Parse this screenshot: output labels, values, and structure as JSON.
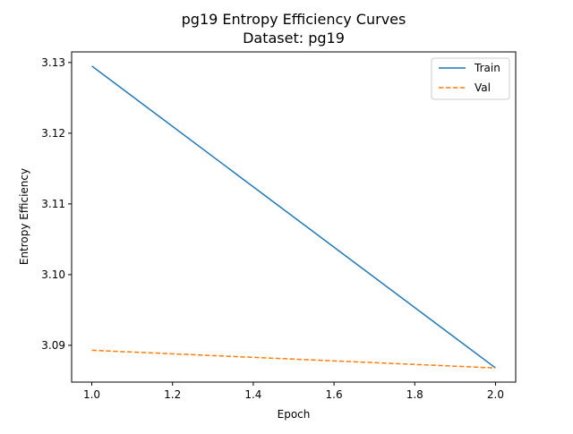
{
  "chart_data": {
    "type": "line",
    "title": "pg19 Entropy Efficiency Curves",
    "subtitle": "Dataset: pg19",
    "xlabel": "Epoch",
    "ylabel": "Entropy Efficiency",
    "xlim": [
      0.95,
      2.05
    ],
    "ylim": [
      3.0848,
      3.1315
    ],
    "xticks": [
      "1.0",
      "1.2",
      "1.4",
      "1.6",
      "1.8",
      "2.0"
    ],
    "yticks": [
      "3.09",
      "3.10",
      "3.11",
      "3.12",
      "3.13"
    ],
    "grid": false,
    "legend_position": "top-right",
    "x": [
      1.0,
      2.0
    ],
    "series": [
      {
        "name": "Train",
        "values": [
          3.1295,
          3.0868
        ],
        "color": "#1f77b4",
        "style": "solid"
      },
      {
        "name": "Val",
        "values": [
          3.0893,
          3.0868
        ],
        "color": "#ff7f0e",
        "style": "dashed"
      }
    ]
  }
}
